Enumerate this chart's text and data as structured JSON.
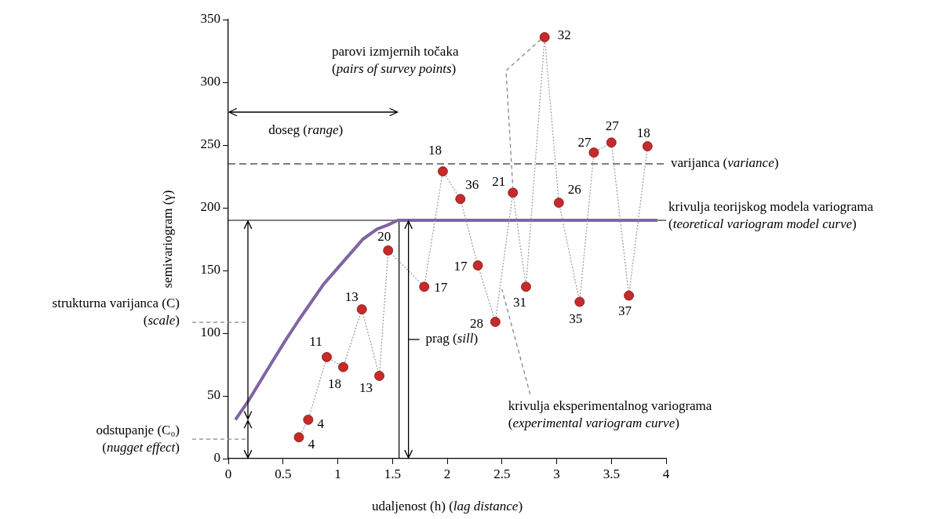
{
  "chart_data": {
    "type": "line",
    "xlabel": "udaljenost (h) (lag distance)",
    "ylabel": "semivariogram (γ)",
    "xlim": [
      0,
      4
    ],
    "xticks": [
      0,
      0.5,
      1,
      1.5,
      2,
      2.5,
      3,
      3.5,
      4
    ],
    "ylim": [
      0,
      350
    ],
    "yticks": [
      0,
      50,
      100,
      150,
      200,
      250,
      300,
      350
    ],
    "legend": false,
    "series": [
      {
        "color": "#c62a2a",
        "marker": "circle",
        "line_style": "dotted",
        "x": [
          0.645,
          0.73,
          0.9,
          1.05,
          1.22,
          1.38,
          1.46,
          1.79,
          1.96,
          2.12,
          2.28,
          2.44,
          2.6,
          2.72,
          2.89,
          3.02,
          3.21,
          3.34,
          3.5,
          3.66,
          3.83
        ],
        "values": [
          17,
          31,
          81,
          73,
          119,
          66,
          166,
          137,
          229,
          207,
          154,
          109,
          212,
          137,
          336,
          204,
          125,
          244,
          252,
          130,
          249
        ]
      },
      {
        "name": "krivulja teorijskog modela variograma\n(teoretical variogram model curve)",
        "color": "#8064a2",
        "marker": "none",
        "line_style": "solid",
        "x": [
          0.065,
          0.19,
          0.4,
          0.52,
          0.64,
          0.87,
          1.12,
          1.23,
          1.36,
          1.45,
          1.55,
          3.92
        ],
        "values": [
          31,
          47,
          77,
          94,
          110,
          139,
          164,
          175,
          183,
          186,
          190,
          190
        ]
      }
    ],
    "ref_lines": [
      {
        "axis": "y",
        "value": 235,
        "label": "varijanca (variance)",
        "color": "#555555",
        "line_style": "dashed"
      },
      {
        "axis": "y",
        "value": 190,
        "color": "#000000",
        "line_style": "solid"
      },
      {
        "axis": "x",
        "value": 1.56,
        "color": "#000000",
        "line_style": "solid"
      }
    ],
    "annotations": [
      "parovi izmjernih točaka\n(pairs of survey points)",
      "strukturna varijanca (C)\n(scale)",
      "odstupanje (C₀)\n(nugget effect)",
      "doseg (range)",
      "prag (sill)",
      {
        "text": "krivulja eksperimentalnog variograma\n(experimental variogram curve)",
        "x": 2.5,
        "y": 135
      },
      {
        "text": "4",
        "x": 0.645,
        "y": 17
      },
      {
        "text": "4",
        "x": 0.73,
        "y": 31
      },
      {
        "text": "11",
        "x": 0.9,
        "y": 81
      },
      {
        "text": "18",
        "x": 1.05,
        "y": 73
      },
      {
        "text": "13",
        "x": 1.22,
        "y": 119
      },
      {
        "text": "13",
        "x": 1.38,
        "y": 66
      },
      {
        "text": "20",
        "x": 1.46,
        "y": 166
      },
      {
        "text": "17",
        "x": 1.79,
        "y": 137
      },
      {
        "text": "18",
        "x": 1.96,
        "y": 229
      },
      {
        "text": "36",
        "x": 2.12,
        "y": 207
      },
      {
        "text": "17",
        "x": 2.28,
        "y": 154
      },
      {
        "text": "28",
        "x": 2.44,
        "y": 109
      },
      {
        "text": "21",
        "x": 2.6,
        "y": 212
      },
      {
        "text": "31",
        "x": 2.72,
        "y": 137
      },
      {
        "text": "32",
        "x": 2.89,
        "y": 336
      },
      {
        "text": "26",
        "x": 3.02,
        "y": 204
      },
      {
        "text": "35",
        "x": 3.21,
        "y": 125
      },
      {
        "text": "27",
        "x": 3.34,
        "y": 244
      },
      {
        "text": "27",
        "x": 3.5,
        "y": 252
      },
      {
        "text": "37",
        "x": 3.66,
        "y": 130
      },
      {
        "text": "18",
        "x": 3.83,
        "y": 249
      }
    ]
  }
}
